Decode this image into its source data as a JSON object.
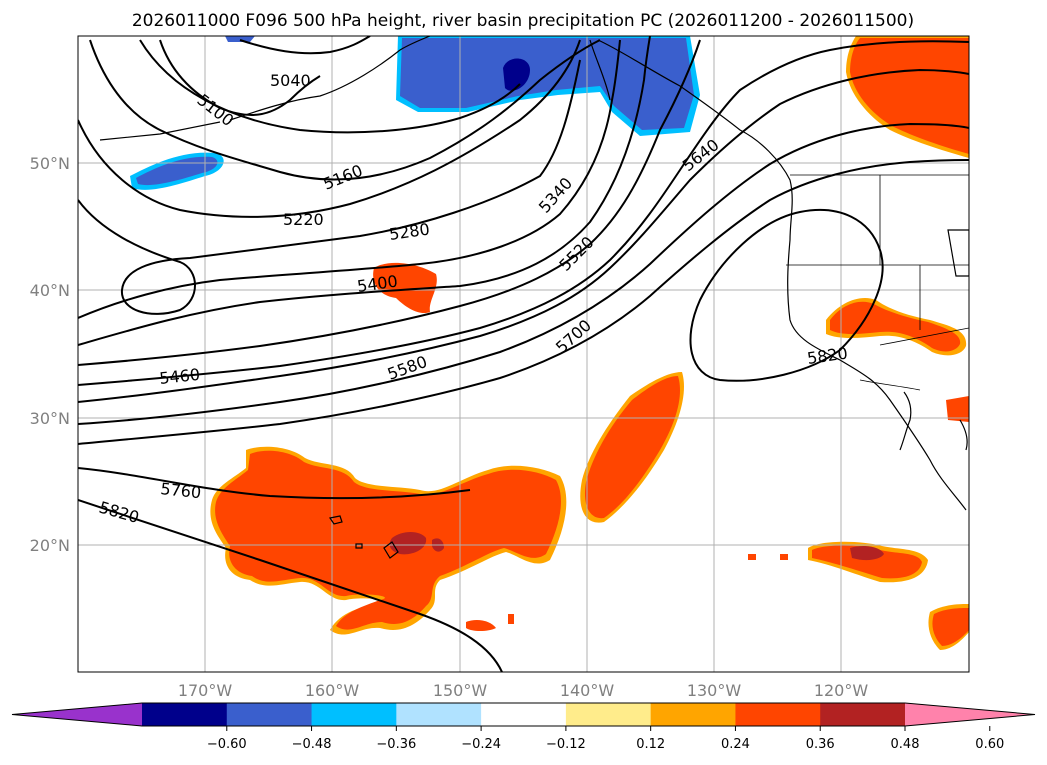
{
  "title": "2026011000 F096 500 hPa height, river basin precipitation PC (2026011200 - 2026011500)",
  "lat_labels": [
    "50°N",
    "40°N",
    "30°N",
    "20°N"
  ],
  "lon_labels": [
    "170°W",
    "160°W",
    "150°W",
    "140°W",
    "130°W",
    "120°W"
  ],
  "colorbar": {
    "ticks": [
      "−0.60",
      "−0.48",
      "−0.36",
      "−0.24",
      "−0.12",
      "0.12",
      "0.24",
      "0.36",
      "0.48",
      "0.60"
    ],
    "colors": [
      "#9932cc",
      "#00008b",
      "#3a5fcd",
      "#00bfff",
      "#b0e2ff",
      "#ffffff",
      "#ffec8b",
      "#ffa500",
      "#ff4500",
      "#b22222",
      "#ff82ab"
    ]
  },
  "contour_labels": [
    "5040",
    "5100",
    "5160",
    "5220",
    "5280",
    "5340",
    "5400",
    "5460",
    "5520",
    "5580",
    "5640",
    "5700",
    "5760",
    "5820",
    "5820"
  ]
}
